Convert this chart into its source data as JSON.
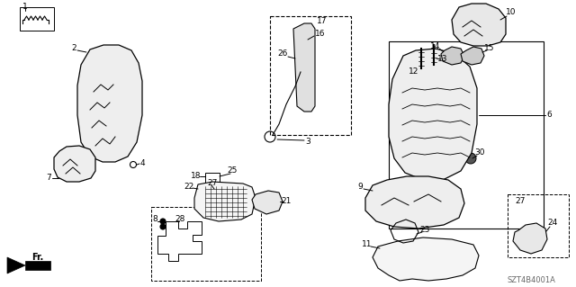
{
  "bg_color": "#ffffff",
  "line_color": "#000000",
  "fig_width": 6.4,
  "fig_height": 3.19,
  "dpi": 100,
  "diagram_code": "SZT4B4001A"
}
